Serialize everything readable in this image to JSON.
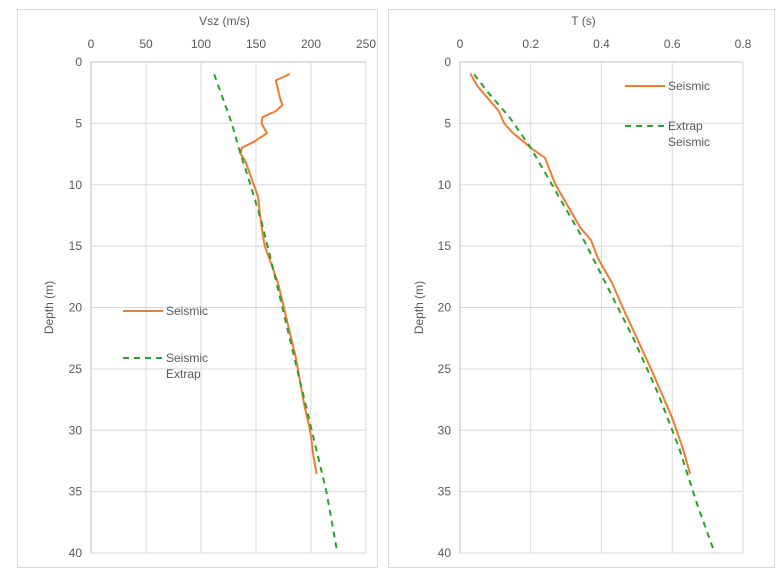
{
  "colors": {
    "seismic": "#ED7D31",
    "extrap": "#2CA02C",
    "grid": "#d9d9d9",
    "axis": "#bfbfbf",
    "text": "#595959"
  },
  "chart_data": [
    {
      "type": "line",
      "title": "Vsz (m/s)",
      "xlabel": "Vsz (m/s)",
      "ylabel": "Depth (m)",
      "xlim": [
        0,
        250
      ],
      "ylim": [
        0,
        40
      ],
      "y_inverted": true,
      "x_axis_position": "top",
      "xticks": [
        0,
        50,
        100,
        150,
        200,
        250
      ],
      "yticks": [
        0,
        5,
        10,
        15,
        20,
        25,
        30,
        35,
        40
      ],
      "legend_position": "left-middle",
      "series": [
        {
          "name": "Seismic",
          "style": "solid",
          "color": "#ED7D31",
          "points": [
            [
              180,
              1
            ],
            [
              168,
              1.5
            ],
            [
              172,
              3
            ],
            [
              174,
              3.5
            ],
            [
              168,
              4
            ],
            [
              156,
              4.5
            ],
            [
              155,
              5
            ],
            [
              160,
              5.8
            ],
            [
              148,
              6.5
            ],
            [
              137,
              7
            ],
            [
              136,
              7.5
            ],
            [
              140,
              8
            ],
            [
              144,
              9
            ],
            [
              148,
              10
            ],
            [
              152,
              11
            ],
            [
              153,
              12
            ],
            [
              156,
              14
            ],
            [
              158,
              15
            ],
            [
              162,
              16
            ],
            [
              166,
              17
            ],
            [
              170,
              18
            ],
            [
              174,
              19.5
            ],
            [
              178,
              21
            ],
            [
              182,
              22.5
            ],
            [
              186,
              24
            ],
            [
              190,
              26
            ],
            [
              194,
              28
            ],
            [
              198,
              29.5
            ],
            [
              200,
              30.5
            ],
            [
              202,
              32
            ],
            [
              205,
              33.5
            ]
          ]
        },
        {
          "name": "Seismic Extrap",
          "style": "dashed",
          "color": "#2CA02C",
          "points": [
            [
              112,
              1
            ],
            [
              120,
              3
            ],
            [
              128,
              5
            ],
            [
              136,
              7.5
            ],
            [
              145,
              10
            ],
            [
              155,
              13
            ],
            [
              166,
              17
            ],
            [
              178,
              21.5
            ],
            [
              190,
              26
            ],
            [
              202,
              30.5
            ],
            [
              214,
              35
            ],
            [
              224,
              40
            ]
          ]
        }
      ],
      "legend": [
        {
          "label": "Seismic",
          "style": "solid"
        },
        {
          "label": "Seismic",
          "label2": "Extrap",
          "style": "dashed"
        }
      ]
    },
    {
      "type": "line",
      "title": "T (s)",
      "xlabel": "T (s)",
      "ylabel": "Depth (m)",
      "xlim": [
        0,
        0.8
      ],
      "ylim": [
        0,
        40
      ],
      "y_inverted": true,
      "x_axis_position": "top",
      "xticks": [
        0,
        0.2,
        0.4,
        0.6,
        0.8
      ],
      "yticks": [
        0,
        5,
        10,
        15,
        20,
        25,
        30,
        35,
        40
      ],
      "legend_position": "top-right",
      "series": [
        {
          "name": "Seismic",
          "style": "solid",
          "color": "#ED7D31",
          "points": [
            [
              0.03,
              1
            ],
            [
              0.05,
              2
            ],
            [
              0.08,
              3
            ],
            [
              0.11,
              4
            ],
            [
              0.125,
              5
            ],
            [
              0.15,
              5.8
            ],
            [
              0.18,
              6.5
            ],
            [
              0.2,
              7
            ],
            [
              0.24,
              7.8
            ],
            [
              0.27,
              10
            ],
            [
              0.31,
              12
            ],
            [
              0.34,
              13.5
            ],
            [
              0.37,
              14.5
            ],
            [
              0.39,
              16
            ],
            [
              0.43,
              18
            ],
            [
              0.46,
              20
            ],
            [
              0.5,
              22.5
            ],
            [
              0.54,
              25
            ],
            [
              0.57,
              27
            ],
            [
              0.6,
              29
            ],
            [
              0.63,
              31.5
            ],
            [
              0.65,
              33.5
            ]
          ]
        },
        {
          "name": "Extrap Seismic",
          "style": "dashed",
          "color": "#2CA02C",
          "points": [
            [
              0.04,
              1
            ],
            [
              0.08,
              2.5
            ],
            [
              0.14,
              4.5
            ],
            [
              0.2,
              7
            ],
            [
              0.27,
              10.5
            ],
            [
              0.35,
              14.5
            ],
            [
              0.42,
              18.5
            ],
            [
              0.49,
              22.5
            ],
            [
              0.56,
              27
            ],
            [
              0.62,
              31.5
            ],
            [
              0.67,
              36
            ],
            [
              0.72,
              40
            ]
          ]
        }
      ],
      "legend": [
        {
          "label": "Seismic",
          "style": "solid"
        },
        {
          "label": "Extrap",
          "label2": "Seismic",
          "style": "dashed"
        }
      ]
    }
  ]
}
